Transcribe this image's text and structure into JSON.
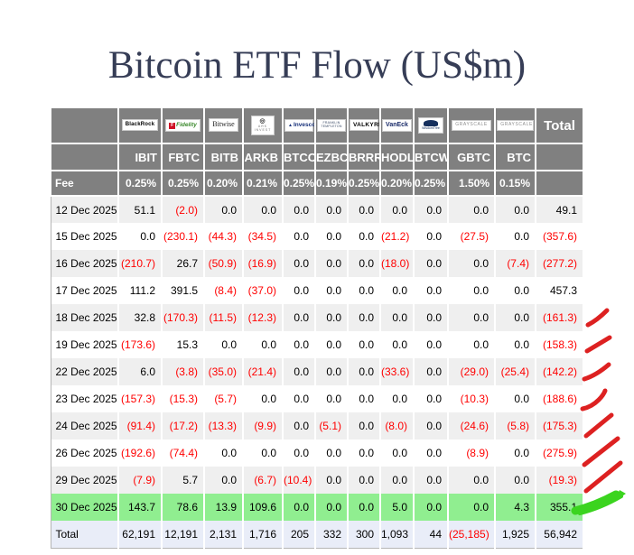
{
  "title": "Bitcoin ETF Flow (US$m)",
  "table": {
    "header": {
      "total_label": "Total",
      "fee_label": "Fee",
      "providers": [
        {
          "name": "BlackRock"
        },
        {
          "name": "Fidelity"
        },
        {
          "name": "Bitwise"
        },
        {
          "name": "ARK Invest",
          "lines": [
            "ARK",
            "INVEST"
          ]
        },
        {
          "name": "Invesco"
        },
        {
          "name": "Franklin Templeton",
          "lines": [
            "FRANKLIN",
            "TEMPLETON"
          ]
        },
        {
          "name": "Valkyrie",
          "display": "VALKYRIE"
        },
        {
          "name": "VanEck"
        },
        {
          "name": "WisdomTree"
        },
        {
          "name": "Grayscale",
          "display": "GRAYSCALE"
        },
        {
          "name": "Grayscale",
          "display": "GRAYSCALE"
        }
      ],
      "tickers": [
        "IBIT",
        "FBTC",
        "BITB",
        "ARKB",
        "BTCO",
        "EZBC",
        "BRRR",
        "HODL",
        "BTCW",
        "GBTC",
        "BTC"
      ],
      "fees": [
        "0.25%",
        "0.25%",
        "0.20%",
        "0.21%",
        "0.25%",
        "0.19%",
        "0.25%",
        "0.20%",
        "0.25%",
        "1.50%",
        "0.15%"
      ]
    },
    "rows": [
      {
        "date": "12 Dec 2025",
        "values": [
          "51.1",
          "(2.0)",
          "0.0",
          "0.0",
          "0.0",
          "0.0",
          "0.0",
          "0.0",
          "0.0",
          "0.0",
          "0.0"
        ],
        "total": "49.1"
      },
      {
        "date": "15 Dec 2025",
        "values": [
          "0.0",
          "(230.1)",
          "(44.3)",
          "(34.5)",
          "0.0",
          "0.0",
          "0.0",
          "(21.2)",
          "0.0",
          "(27.5)",
          "0.0"
        ],
        "total": "(357.6)"
      },
      {
        "date": "16 Dec 2025",
        "values": [
          "(210.7)",
          "26.7",
          "(50.9)",
          "(16.9)",
          "0.0",
          "0.0",
          "0.0",
          "(18.0)",
          "0.0",
          "0.0",
          "(7.4)"
        ],
        "total": "(277.2)"
      },
      {
        "date": "17 Dec 2025",
        "values": [
          "111.2",
          "391.5",
          "(8.4)",
          "(37.0)",
          "0.0",
          "0.0",
          "0.0",
          "0.0",
          "0.0",
          "0.0",
          "0.0"
        ],
        "total": "457.3"
      },
      {
        "date": "18 Dec 2025",
        "values": [
          "32.8",
          "(170.3)",
          "(11.5)",
          "(12.3)",
          "0.0",
          "0.0",
          "0.0",
          "0.0",
          "0.0",
          "0.0",
          "0.0"
        ],
        "total": "(161.3)",
        "annotation": "red-check"
      },
      {
        "date": "19 Dec 2025",
        "values": [
          "(173.6)",
          "15.3",
          "0.0",
          "0.0",
          "0.0",
          "0.0",
          "0.0",
          "0.0",
          "0.0",
          "0.0",
          "0.0"
        ],
        "total": "(158.3)",
        "annotation": "red-check"
      },
      {
        "date": "22 Dec 2025",
        "values": [
          "6.0",
          "(3.8)",
          "(35.0)",
          "(21.4)",
          "0.0",
          "0.0",
          "0.0",
          "(33.6)",
          "0.0",
          "(29.0)",
          "(25.4)"
        ],
        "total": "(142.2)",
        "annotation": "red-check"
      },
      {
        "date": "23 Dec 2025",
        "values": [
          "(157.3)",
          "(15.3)",
          "(5.7)",
          "0.0",
          "0.0",
          "0.0",
          "0.0",
          "0.0",
          "0.0",
          "(10.3)",
          "0.0"
        ],
        "total": "(188.6)",
        "annotation": "red-check"
      },
      {
        "date": "24 Dec 2025",
        "values": [
          "(91.4)",
          "(17.2)",
          "(13.3)",
          "(9.9)",
          "0.0",
          "(5.1)",
          "0.0",
          "(8.0)",
          "0.0",
          "(24.6)",
          "(5.8)"
        ],
        "total": "(175.3)",
        "annotation": "red-check"
      },
      {
        "date": "26 Dec 2025",
        "values": [
          "(192.6)",
          "(74.4)",
          "0.0",
          "0.0",
          "0.0",
          "0.0",
          "0.0",
          "0.0",
          "0.0",
          "(8.9)",
          "0.0"
        ],
        "total": "(275.9)",
        "annotation": "red-check"
      },
      {
        "date": "29 Dec 2025",
        "values": [
          "(7.9)",
          "5.7",
          "0.0",
          "(6.7)",
          "(10.4)",
          "0.0",
          "0.0",
          "0.0",
          "0.0",
          "0.0",
          "0.0"
        ],
        "total": "(19.3)",
        "annotation": "red-check"
      },
      {
        "date": "30 Dec 2025",
        "values": [
          "143.7",
          "78.6",
          "13.9",
          "109.6",
          "0.0",
          "0.0",
          "0.0",
          "5.0",
          "0.0",
          "0.0",
          "4.3"
        ],
        "total": "355.1",
        "highlight": true,
        "annotation": "green-arrow"
      }
    ],
    "total_row": {
      "label": "Total",
      "values": [
        "62,191",
        "12,191",
        "2,131",
        "1,716",
        "205",
        "332",
        "300",
        "1,093",
        "44",
        "(25,185)",
        "1,925"
      ],
      "total": "56,942"
    }
  },
  "chart_data": {
    "type": "table",
    "title": "Bitcoin ETF Flow (US$m)",
    "columns": [
      "IBIT",
      "FBTC",
      "BITB",
      "ARKB",
      "BTCO",
      "EZBC",
      "BRRR",
      "HODL",
      "BTCW",
      "GBTC",
      "BTC",
      "Total"
    ],
    "fees_percent": [
      0.25,
      0.25,
      0.2,
      0.21,
      0.25,
      0.19,
      0.25,
      0.2,
      0.25,
      1.5,
      0.15
    ],
    "rows": [
      {
        "date": "12 Dec 2025",
        "values": [
          51.1,
          -2.0,
          0,
          0,
          0,
          0,
          0,
          0,
          0,
          0,
          0
        ],
        "total": 49.1
      },
      {
        "date": "15 Dec 2025",
        "values": [
          0,
          -230.1,
          -44.3,
          -34.5,
          0,
          0,
          0,
          -21.2,
          0,
          -27.5,
          0
        ],
        "total": -357.6
      },
      {
        "date": "16 Dec 2025",
        "values": [
          -210.7,
          26.7,
          -50.9,
          -16.9,
          0,
          0,
          0,
          -18.0,
          0,
          0,
          -7.4
        ],
        "total": -277.2
      },
      {
        "date": "17 Dec 2025",
        "values": [
          111.2,
          391.5,
          -8.4,
          -37.0,
          0,
          0,
          0,
          0,
          0,
          0,
          0
        ],
        "total": 457.3
      },
      {
        "date": "18 Dec 2025",
        "values": [
          32.8,
          -170.3,
          -11.5,
          -12.3,
          0,
          0,
          0,
          0,
          0,
          0,
          0
        ],
        "total": -161.3
      },
      {
        "date": "19 Dec 2025",
        "values": [
          -173.6,
          15.3,
          0,
          0,
          0,
          0,
          0,
          0,
          0,
          0,
          0
        ],
        "total": -158.3
      },
      {
        "date": "22 Dec 2025",
        "values": [
          6.0,
          -3.8,
          -35.0,
          -21.4,
          0,
          0,
          0,
          -33.6,
          0,
          -29.0,
          -25.4
        ],
        "total": -142.2
      },
      {
        "date": "23 Dec 2025",
        "values": [
          -157.3,
          -15.3,
          -5.7,
          0,
          0,
          0,
          0,
          0,
          0,
          -10.3,
          0
        ],
        "total": -188.6
      },
      {
        "date": "24 Dec 2025",
        "values": [
          -91.4,
          -17.2,
          -13.3,
          -9.9,
          0,
          -5.1,
          0,
          -8.0,
          0,
          -24.6,
          -5.8
        ],
        "total": -175.3
      },
      {
        "date": "26 Dec 2025",
        "values": [
          -192.6,
          -74.4,
          0,
          0,
          0,
          0,
          0,
          0,
          0,
          -8.9,
          0
        ],
        "total": -275.9
      },
      {
        "date": "29 Dec 2025",
        "values": [
          -7.9,
          5.7,
          0,
          -6.7,
          -10.4,
          0,
          0,
          0,
          0,
          0,
          0
        ],
        "total": -19.3
      },
      {
        "date": "30 Dec 2025",
        "values": [
          143.7,
          78.6,
          13.9,
          109.6,
          0,
          0,
          0,
          5.0,
          0,
          0,
          4.3
        ],
        "total": 355.1
      }
    ],
    "column_totals": [
      62191,
      12191,
      2131,
      1716,
      205,
      332,
      300,
      1093,
      44,
      -25185,
      1925
    ],
    "grand_total": 56942
  },
  "annotations": {
    "red_marks_rows": [
      "18 Dec 2025",
      "19 Dec 2025",
      "22 Dec 2025",
      "23 Dec 2025",
      "24 Dec 2025",
      "26 Dec 2025",
      "29 Dec 2025"
    ],
    "green_arrow_row": "30 Dec 2025"
  },
  "colors": {
    "header_bg": "#808080",
    "negative": "#ff0000",
    "highlight_row": "#90ee90",
    "total_row_bg": "#e9edf8",
    "stripe": "#efefef",
    "title": "#363d56",
    "red_mark": "#dd2121",
    "green_mark": "#3bd41f"
  }
}
